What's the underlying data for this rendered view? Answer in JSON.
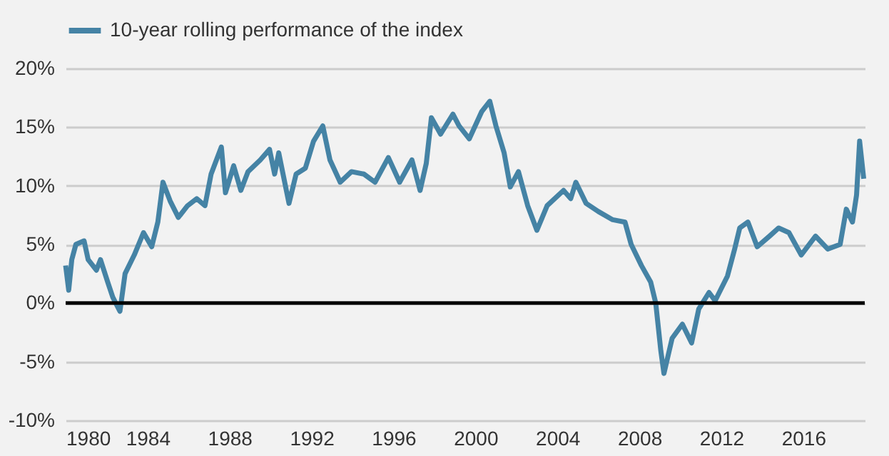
{
  "chart_data": {
    "type": "line",
    "x": [
      1980.0,
      1980.15,
      1980.3,
      1980.5,
      1980.9,
      1981.1,
      1981.5,
      1981.7,
      1982.05,
      1982.3,
      1982.65,
      1982.9,
      1983.35,
      1983.8,
      1984.2,
      1984.5,
      1984.75,
      1985.1,
      1985.5,
      1985.95,
      1986.4,
      1986.8,
      1987.1,
      1987.6,
      1987.8,
      1988.2,
      1988.55,
      1988.9,
      1989.5,
      1989.95,
      1990.2,
      1990.4,
      1990.9,
      1991.25,
      1991.7,
      1992.1,
      1992.55,
      1992.9,
      1993.4,
      1993.95,
      1994.55,
      1995.1,
      1995.75,
      1996.3,
      1996.9,
      1997.3,
      1997.6,
      1997.85,
      1998.3,
      1998.9,
      1999.2,
      1999.7,
      2000.3,
      2000.7,
      2001.0,
      2001.4,
      2001.7,
      2002.1,
      2002.55,
      2003.0,
      2003.5,
      2004.3,
      2004.65,
      2004.9,
      2005.4,
      2006.0,
      2006.7,
      2007.3,
      2007.6,
      2008.1,
      2008.55,
      2008.8,
      2009.05,
      2009.2,
      2009.6,
      2010.1,
      2010.55,
      2010.9,
      2011.4,
      2011.7,
      2012.3,
      2012.65,
      2012.9,
      2013.3,
      2013.75,
      2014.35,
      2014.8,
      2015.3,
      2015.9,
      2016.6,
      2017.2,
      2017.8,
      2018.1,
      2018.4,
      2018.6,
      2018.75,
      2018.95
    ],
    "series": [
      {
        "name": "10-year rolling performance of the index",
        "color": "#4583a5",
        "values": [
          3.2,
          1.1,
          3.7,
          5.0,
          5.3,
          3.7,
          2.8,
          3.7,
          1.8,
          0.5,
          -0.7,
          2.5,
          4.1,
          6.0,
          4.8,
          6.9,
          10.3,
          8.7,
          7.3,
          8.3,
          8.9,
          8.3,
          11.0,
          13.3,
          9.4,
          11.7,
          9.6,
          11.2,
          12.2,
          13.1,
          11.0,
          12.8,
          8.5,
          11.0,
          11.5,
          13.8,
          15.1,
          12.2,
          10.3,
          11.2,
          11.0,
          10.3,
          12.4,
          10.3,
          12.2,
          9.6,
          11.9,
          15.8,
          14.4,
          16.1,
          15.1,
          14.0,
          16.3,
          17.2,
          15.1,
          12.8,
          9.9,
          11.2,
          8.3,
          6.2,
          8.3,
          9.6,
          8.9,
          10.3,
          8.5,
          7.8,
          7.1,
          6.9,
          5.0,
          3.2,
          1.8,
          0.0,
          -4.1,
          -6.0,
          -3.0,
          -1.8,
          -3.4,
          -0.5,
          0.9,
          0.2,
          2.3,
          4.6,
          6.4,
          6.9,
          4.8,
          5.7,
          6.4,
          6.0,
          4.1,
          5.7,
          4.6,
          5.0,
          8.0,
          6.9,
          9.2,
          13.8,
          10.6
        ]
      }
    ],
    "xlim": [
      1980,
      2019.0
    ],
    "xticks": [
      1980,
      1984,
      1988,
      1992,
      1996,
      2000,
      2004,
      2008,
      2012,
      2016
    ],
    "ylim": [
      -10,
      20
    ],
    "yticks": [
      {
        "value": -10,
        "label": "-10%"
      },
      {
        "value": -5,
        "label": "-5%"
      },
      {
        "value": 0,
        "label": "0%"
      },
      {
        "value": 5,
        "label": "5%"
      },
      {
        "value": 10,
        "label": "10%"
      },
      {
        "value": 15,
        "label": "15%"
      },
      {
        "value": 20,
        "label": "20%"
      }
    ],
    "ref_lines": [
      {
        "axis": "y",
        "value": 0,
        "color": "#000000"
      }
    ],
    "grid": "y",
    "legend": "top"
  }
}
